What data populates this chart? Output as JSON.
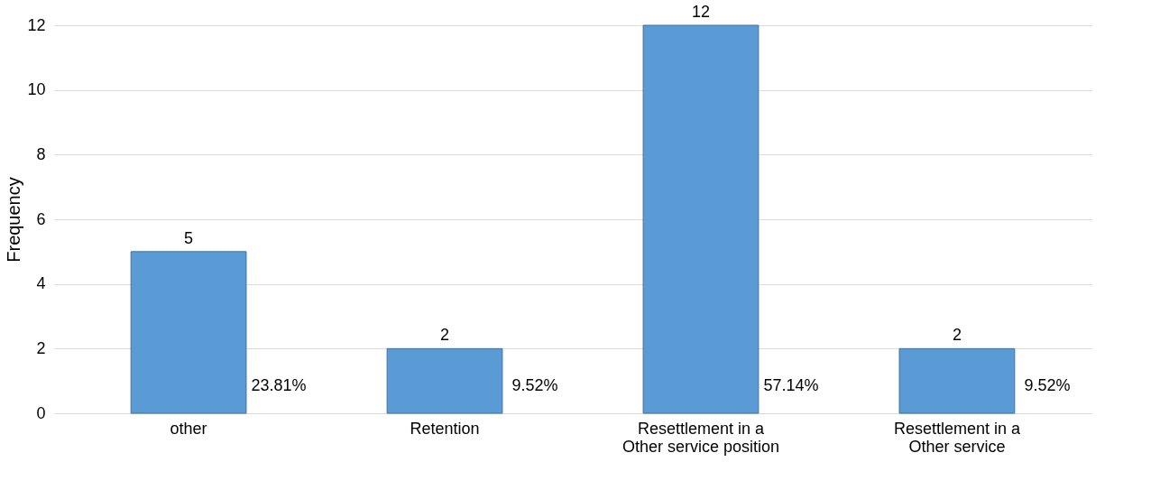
{
  "chart_data": {
    "type": "bar",
    "ylabel": "Frequency",
    "categories": [
      "other",
      "Retention",
      "Resettlement in a\nOther service position",
      "Resettlement in a\nOther service"
    ],
    "values": [
      5,
      2,
      12,
      2
    ],
    "color": "#5b9bd5",
    "data_labels": true,
    "ylim": [
      0,
      12
    ],
    "yticks": [
      0,
      2,
      4,
      6,
      8,
      10,
      12
    ],
    "grid": "y",
    "annotations": [
      "23.81%",
      "9.52%",
      "57.14%",
      "9.52%"
    ]
  }
}
